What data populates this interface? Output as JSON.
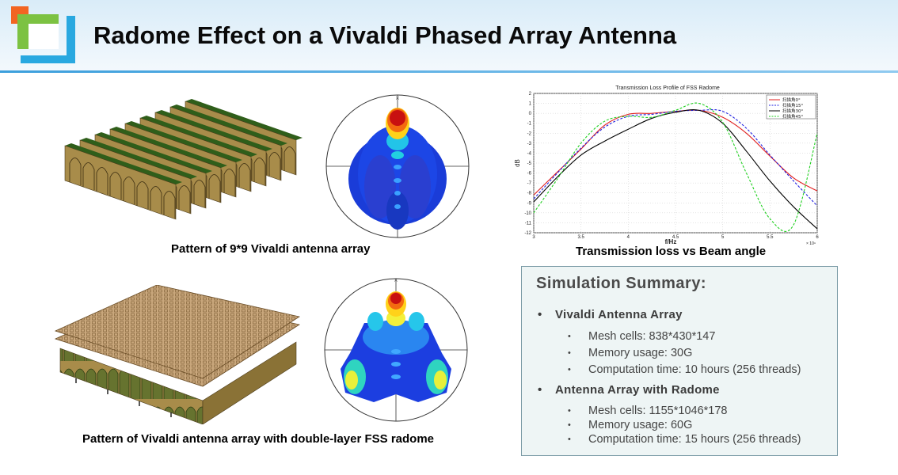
{
  "title": "Radome Effect on a Vivaldi Phased Array Antenna",
  "captions": {
    "top_left": "Pattern of 9*9 Vivaldi antenna array",
    "bottom_left": "Pattern of Vivaldi antenna array with double-layer FSS radome",
    "top_right": "Transmission loss vs Beam angle"
  },
  "chart_data": {
    "type": "line",
    "title": "Transmission Loss Profile of FSS Radome",
    "xlabel": "f/Hz",
    "ylabel": "dB",
    "x_exponent": "× 10^9",
    "xlim": [
      3,
      6
    ],
    "ylim": [
      -12,
      2
    ],
    "x_ticks": [
      "3",
      "3.5",
      "4",
      "4.5",
      "5",
      "5.5",
      "6"
    ],
    "y_ticks": [
      "2",
      "1",
      "0",
      "-1",
      "-2",
      "-3",
      "-4",
      "-5",
      "-6",
      "-7",
      "-8",
      "-9",
      "-10",
      "-11",
      "-12"
    ],
    "grid": true,
    "legend_position": "top-right",
    "x": [
      3.0,
      3.25,
      3.5,
      3.75,
      4.0,
      4.25,
      4.5,
      4.75,
      5.0,
      5.25,
      5.5,
      5.75,
      6.0
    ],
    "series": [
      {
        "name": "扫描角0°",
        "color": "#e02020",
        "dash": "solid",
        "values": [
          -8.2,
          -5.9,
          -3.6,
          -1.2,
          -0.1,
          0.0,
          0.2,
          0.3,
          -0.4,
          -2.0,
          -4.3,
          -6.5,
          -7.8
        ]
      },
      {
        "name": "扫描角15°",
        "color": "#2020e0",
        "dash": "dashed",
        "values": [
          -8.6,
          -6.0,
          -3.5,
          -1.4,
          -0.3,
          -0.1,
          0.2,
          0.3,
          0.2,
          -1.5,
          -4.2,
          -6.8,
          -9.3
        ]
      },
      {
        "name": "扫描角30°",
        "color": "#000000",
        "dash": "solid",
        "values": [
          -8.9,
          -6.4,
          -4.2,
          -2.8,
          -1.6,
          -0.5,
          0.1,
          0.3,
          -1.0,
          -3.8,
          -6.8,
          -9.4,
          -11.6
        ]
      },
      {
        "name": "扫描角45°",
        "color": "#20d020",
        "dash": "dashed",
        "values": [
          -10.0,
          -6.6,
          -3.0,
          -0.8,
          -0.3,
          -0.4,
          0.3,
          1.0,
          -0.9,
          -6.0,
          -10.6,
          -11.2,
          -2.0
        ]
      }
    ]
  },
  "summary": {
    "heading": "Simulation  Summary:",
    "bullet": "•",
    "sub_bullet": "•",
    "sections": [
      {
        "title": "Vivaldi  Antenna  Array",
        "items": [
          "Mesh cells: 838*430*147",
          "Memory usage: 30G",
          "Computation time: 10 hours (256 threads)"
        ]
      },
      {
        "title": "Antenna  Array  with  Radome",
        "items": [
          "Mesh cells: 1155*1046*178",
          "Memory usage: 60G",
          "Computation time: 15 hours (256 threads)"
        ]
      }
    ]
  },
  "colors": {
    "logo_orange": "#f26522",
    "logo_green": "#7cc242",
    "logo_blue": "#29a8e0",
    "fin_brown": "#a88c4a",
    "fin_green": "#2f5e1a",
    "radome_tan": "#c9a77c",
    "summary_bg": "#eef5f5"
  },
  "icons": {
    "logo": "company-logo-squares",
    "pattern_top": "radiation-pattern-polar-plot",
    "pattern_bottom": "radiation-pattern-polar-plot-with-radome"
  }
}
